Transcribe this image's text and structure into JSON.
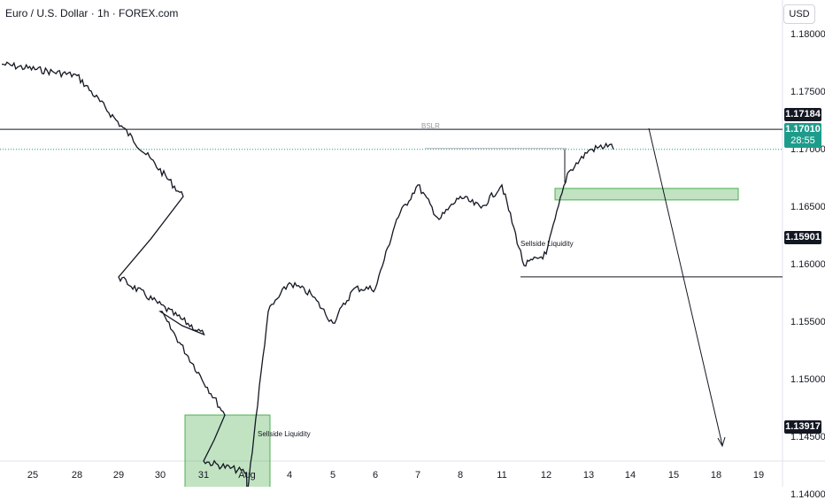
{
  "header": {
    "title": "Euro / U.S. Dollar · 1h · FOREX.com",
    "currency_button": "USD"
  },
  "price_axis": {
    "ticks": [
      "1.18000",
      "1.17500",
      "1.17000",
      "1.16500",
      "1.16000",
      "1.15500",
      "1.15000",
      "1.14500",
      "1.14000"
    ],
    "current_price": "1.17010",
    "countdown": "28:55"
  },
  "time_axis": {
    "ticks": [
      "25",
      "28",
      "29",
      "30",
      "31",
      "Aug",
      "4",
      "5",
      "6",
      "7",
      "8",
      "11",
      "12",
      "13",
      "14",
      "15",
      "18",
      "19"
    ]
  },
  "levels": [
    {
      "label": "1.17184",
      "price": 1.17184
    },
    {
      "label": "1.15901",
      "price": 1.15901
    },
    {
      "label": "1.13917",
      "price": 1.13917
    }
  ],
  "annotations": {
    "sellside_low": "Sellside Liquidity",
    "sellside_mid": "Sellside Liquidity",
    "bslr": "BSLR"
  },
  "colors": {
    "up": "#089981",
    "down": "#131722",
    "zone_fill": "#4caf50",
    "current_price_bg": "#1d9c8c",
    "level_label_bg": "#131722"
  },
  "chart_data": {
    "type": "line",
    "symbol": "Euro / U.S. Dollar",
    "interval": "1h",
    "y_axis_range": [
      1.1365,
      1.1825
    ],
    "x_ticks": [
      "25",
      "28",
      "29",
      "30",
      "31",
      "Aug",
      "4",
      "5",
      "6",
      "7",
      "8",
      "11",
      "12",
      "13",
      "14",
      "15",
      "18",
      "19"
    ],
    "series": [
      {
        "x": [
          "25",
          "28",
          "28",
          "29",
          "29",
          "30",
          "30",
          "31",
          "31",
          "Aug",
          "Aug",
          "4",
          "4",
          "5",
          "5",
          "6",
          "6",
          "7",
          "7",
          "8",
          "8",
          "11",
          "11",
          "12",
          "12",
          "13",
          "13"
        ],
        "y": [
          1.1775,
          1.1765,
          1.166,
          1.159,
          1.154,
          1.156,
          1.147,
          1.143,
          1.142,
          1.14,
          1.156,
          1.1585,
          1.1575,
          1.155,
          1.158,
          1.158,
          1.164,
          1.167,
          1.164,
          1.166,
          1.165,
          1.167,
          1.16,
          1.161,
          1.168,
          1.17,
          1.1705
        ]
      }
    ],
    "levels": [
      1.17184,
      1.15901,
      1.13917
    ],
    "zones": [
      {
        "from": "30",
        "to": "Aug",
        "price_top": 1.147,
        "price_bottom": 1.1392
      },
      {
        "from": "12",
        "to": "18",
        "price_top": 1.1667,
        "price_bottom": 1.1657
      }
    ],
    "projection": {
      "from": {
        "x": "14",
        "y": 1.17
      },
      "to": {
        "x": "18",
        "y": 1.1372
      }
    },
    "grid": false
  }
}
